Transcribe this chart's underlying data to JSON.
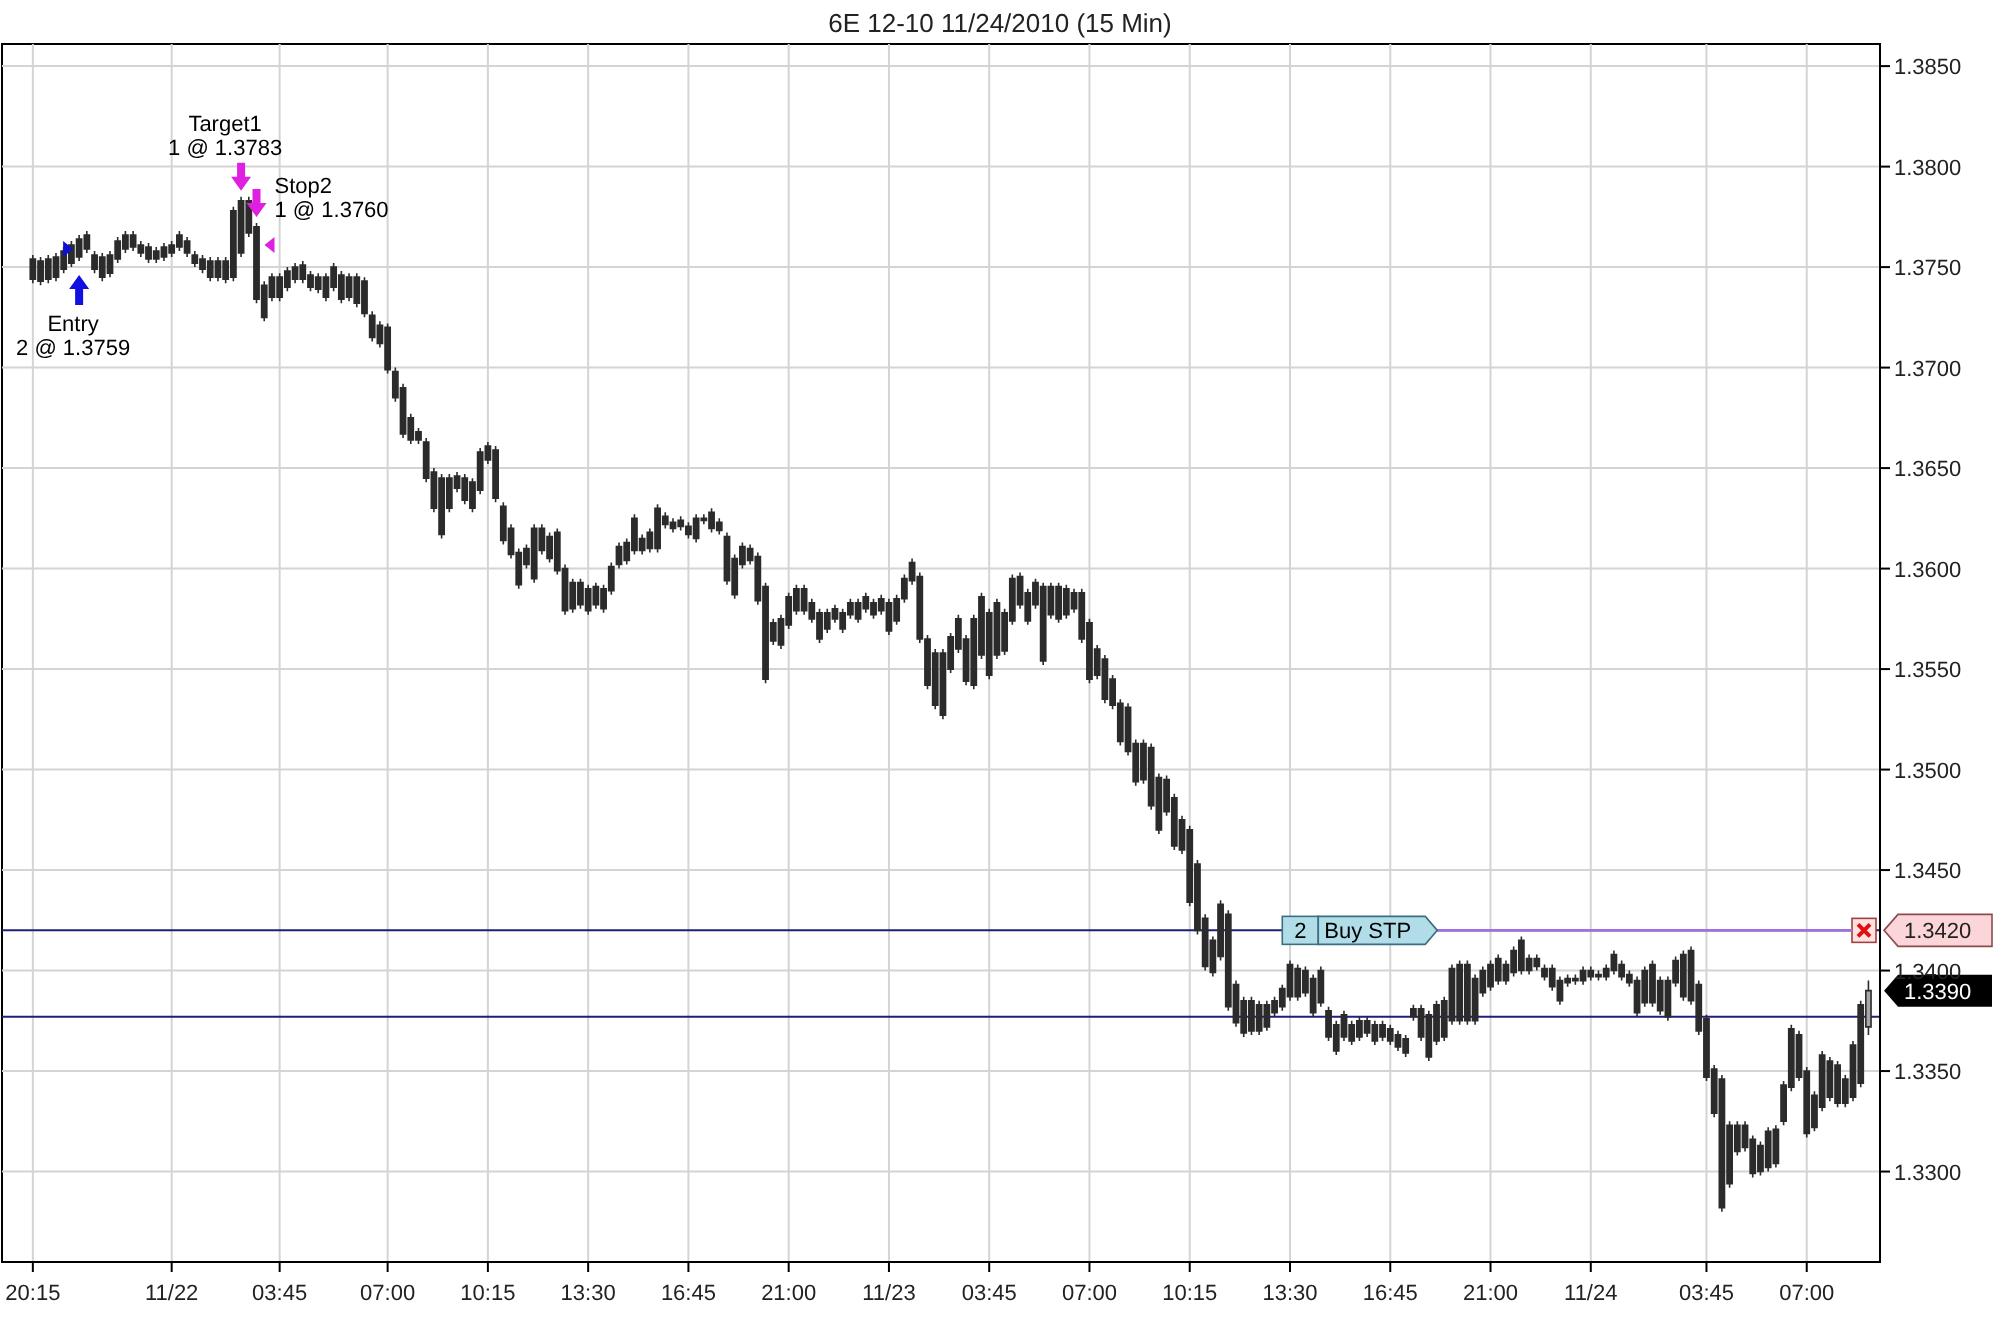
{
  "chart_data": {
    "type": "candlestick",
    "title": "6E 12-10  11/24/2010 (15 Min)",
    "color": "#2b2b2b",
    "grid": true,
    "categories": [
      "20:15",
      null,
      null,
      null,
      null,
      null,
      null,
      null,
      null,
      null,
      null,
      null,
      null,
      null,
      null,
      null,
      null,
      null,
      "11/22",
      null,
      null,
      null,
      null,
      null,
      null,
      null,
      null,
      null,
      null,
      null,
      null,
      null,
      "03:45",
      null,
      null,
      null,
      null,
      null,
      null,
      null,
      null,
      null,
      null,
      null,
      null,
      null,
      "07:00",
      null,
      null,
      null,
      null,
      null,
      null,
      null,
      null,
      null,
      null,
      null,
      null,
      "10:15",
      null,
      null,
      null,
      null,
      null,
      null,
      null,
      null,
      null,
      null,
      null,
      null,
      "13:30",
      null,
      null,
      null,
      null,
      null,
      null,
      null,
      null,
      null,
      null,
      null,
      null,
      "16:45",
      null,
      null,
      null,
      null,
      null,
      null,
      null,
      null,
      null,
      null,
      null,
      null,
      "21:00",
      null,
      null,
      null,
      null,
      null,
      null,
      null,
      null,
      null,
      null,
      null,
      null,
      "11/23",
      null,
      null,
      null,
      null,
      null,
      null,
      null,
      null,
      null,
      null,
      null,
      null,
      "03:45",
      null,
      null,
      null,
      null,
      null,
      null,
      null,
      null,
      null,
      null,
      null,
      null,
      "07:00",
      null,
      null,
      null,
      null,
      null,
      null,
      null,
      null,
      null,
      null,
      null,
      null,
      "10:15",
      null,
      null,
      null,
      null,
      null,
      null,
      null,
      null,
      null,
      null,
      null,
      null,
      "13:30",
      null,
      null,
      null,
      null,
      null,
      null,
      null,
      null,
      null,
      null,
      null,
      null,
      "16:45",
      null,
      null,
      null,
      null,
      null,
      null,
      null,
      null,
      null,
      null,
      null,
      null,
      "21:00",
      null,
      null,
      null,
      null,
      null,
      null,
      null,
      null,
      null,
      null,
      null,
      null,
      "11/24",
      null,
      null,
      null,
      null,
      null,
      null,
      null,
      null,
      null,
      null,
      null,
      null,
      null,
      null,
      "03:45",
      null,
      null,
      null,
      null,
      null,
      null,
      null,
      null,
      null,
      null,
      null,
      null,
      "07:00",
      null,
      null,
      null,
      null,
      null,
      null,
      null,
      null
    ],
    "ylim": [
      1.3255,
      1.3861
    ],
    "yticks": [
      {
        "value": 1.33,
        "label": "1.3300"
      },
      {
        "value": 1.335,
        "label": "1.3350"
      },
      {
        "value": 1.34,
        "label": "1.3400"
      },
      {
        "value": 1.345,
        "label": "1.3450"
      },
      {
        "value": 1.35,
        "label": "1.3500"
      },
      {
        "value": 1.355,
        "label": "1.3550"
      },
      {
        "value": 1.36,
        "label": "1.3600"
      },
      {
        "value": 1.365,
        "label": "1.3650"
      },
      {
        "value": 1.37,
        "label": "1.3700"
      },
      {
        "value": 1.375,
        "label": "1.3750"
      },
      {
        "value": 1.38,
        "label": "1.3800"
      },
      {
        "value": 1.385,
        "label": "1.3850"
      }
    ],
    "ref_lines": [
      {
        "axis": "y",
        "value": 1.342,
        "label": "1.3420",
        "color": "#1f1f7a"
      },
      {
        "axis": "y",
        "value": 1.3377,
        "color": "#1f1f7a"
      }
    ],
    "annotations": [
      {
        "text": "Entry\n2 @ 1.3759",
        "y": 1.3759
      },
      "Target1\n1 @ 1.3783",
      "Stop2\n1 @ 1.3760",
      {
        "text": "2 Buy STP",
        "y": 1.342
      },
      "1.3390"
    ],
    "ohlc": [
      [
        1.3754,
        1.3756,
        1.3742,
        1.3744
      ],
      [
        1.3753,
        1.3755,
        1.3741,
        1.3743
      ],
      [
        1.3754,
        1.3756,
        1.3742,
        1.3744
      ],
      [
        1.3755,
        1.3757,
        1.3743,
        1.3745
      ],
      [
        1.3758,
        1.376,
        1.3747,
        1.3749
      ],
      [
        1.3761,
        1.3763,
        1.375,
        1.3752
      ],
      [
        1.3764,
        1.3766,
        1.3753,
        1.3755
      ],
      [
        1.3766,
        1.3768,
        1.3757,
        1.3759
      ],
      [
        1.3756,
        1.3758,
        1.3747,
        1.3749
      ],
      [
        1.3755,
        1.3757,
        1.3743,
        1.3745
      ],
      [
        1.3756,
        1.3758,
        1.3745,
        1.3747
      ],
      [
        1.3763,
        1.3765,
        1.3752,
        1.3754
      ],
      [
        1.3766,
        1.3768,
        1.3757,
        1.3759
      ],
      [
        1.3766,
        1.3768,
        1.3758,
        1.376
      ],
      [
        1.3761,
        1.3763,
        1.3755,
        1.3757
      ],
      [
        1.376,
        1.3762,
        1.3752,
        1.3754
      ],
      [
        1.3758,
        1.376,
        1.3752,
        1.3754
      ],
      [
        1.376,
        1.3762,
        1.3753,
        1.3755
      ],
      [
        1.3761,
        1.3763,
        1.3755,
        1.3757
      ],
      [
        1.3766,
        1.3768,
        1.3758,
        1.376
      ],
      [
        1.3763,
        1.3765,
        1.3755,
        1.3757
      ],
      [
        1.3756,
        1.3758,
        1.375,
        1.3752
      ],
      [
        1.3754,
        1.3756,
        1.3747,
        1.3749
      ],
      [
        1.3753,
        1.3755,
        1.3743,
        1.3745
      ],
      [
        1.3753,
        1.3755,
        1.3743,
        1.3745
      ],
      [
        1.3753,
        1.3755,
        1.3742,
        1.3744
      ],
      [
        1.3778,
        1.378,
        1.3743,
        1.3745
      ],
      [
        1.3783,
        1.3785,
        1.3755,
        1.3757
      ],
      [
        1.3783,
        1.3785,
        1.3765,
        1.3767
      ],
      [
        1.377,
        1.3772,
        1.3732,
        1.3734
      ],
      [
        1.3741,
        1.3743,
        1.3723,
        1.3725
      ],
      [
        1.3745,
        1.3747,
        1.3733,
        1.3735
      ],
      [
        1.3745,
        1.3747,
        1.3733,
        1.3735
      ],
      [
        1.3748,
        1.375,
        1.3738,
        1.374
      ],
      [
        1.375,
        1.3752,
        1.3742,
        1.3744
      ],
      [
        1.3751,
        1.3753,
        1.3742,
        1.3744
      ],
      [
        1.3746,
        1.3748,
        1.3738,
        1.374
      ],
      [
        1.3745,
        1.3747,
        1.3737,
        1.3739
      ],
      [
        1.3745,
        1.3747,
        1.3733,
        1.3735
      ],
      [
        1.375,
        1.3752,
        1.3738,
        1.374
      ],
      [
        1.3746,
        1.3748,
        1.3732,
        1.3734
      ],
      [
        1.3745,
        1.3747,
        1.3733,
        1.3735
      ],
      [
        1.3745,
        1.3747,
        1.373,
        1.3732
      ],
      [
        1.3743,
        1.3745,
        1.3725,
        1.3727
      ],
      [
        1.3726,
        1.3728,
        1.3713,
        1.3715
      ],
      [
        1.3721,
        1.3723,
        1.371,
        1.3712
      ],
      [
        1.372,
        1.3722,
        1.3697,
        1.3699
      ],
      [
        1.3698,
        1.37,
        1.3683,
        1.3685
      ],
      [
        1.369,
        1.3692,
        1.3665,
        1.3667
      ],
      [
        1.3675,
        1.3677,
        1.3662,
        1.3664
      ],
      [
        1.3668,
        1.367,
        1.3662,
        1.3664
      ],
      [
        1.3663,
        1.3665,
        1.3643,
        1.3645
      ],
      [
        1.3648,
        1.365,
        1.3628,
        1.363
      ],
      [
        1.3645,
        1.3647,
        1.3615,
        1.3617
      ],
      [
        1.3645,
        1.3647,
        1.3628,
        1.363
      ],
      [
        1.3646,
        1.3648,
        1.3638,
        1.364
      ],
      [
        1.3645,
        1.3647,
        1.3632,
        1.3634
      ],
      [
        1.3643,
        1.3645,
        1.3628,
        1.363
      ],
      [
        1.3658,
        1.366,
        1.3637,
        1.3639
      ],
      [
        1.3661,
        1.3663,
        1.3652,
        1.3654
      ],
      [
        1.3659,
        1.3661,
        1.3633,
        1.3635
      ],
      [
        1.3631,
        1.3633,
        1.3612,
        1.3614
      ],
      [
        1.362,
        1.3622,
        1.3605,
        1.3607
      ],
      [
        1.3608,
        1.361,
        1.359,
        1.3592
      ],
      [
        1.361,
        1.3612,
        1.36,
        1.3602
      ],
      [
        1.362,
        1.3622,
        1.3593,
        1.3595
      ],
      [
        1.362,
        1.3622,
        1.3607,
        1.3609
      ],
      [
        1.3616,
        1.3618,
        1.3603,
        1.3605
      ],
      [
        1.3618,
        1.362,
        1.3597,
        1.3599
      ],
      [
        1.36,
        1.3602,
        1.3577,
        1.3579
      ],
      [
        1.3593,
        1.3595,
        1.3578,
        1.358
      ],
      [
        1.3593,
        1.3595,
        1.358,
        1.3582
      ],
      [
        1.359,
        1.3592,
        1.3577,
        1.3579
      ],
      [
        1.3591,
        1.3593,
        1.358,
        1.3582
      ],
      [
        1.359,
        1.3592,
        1.3578,
        1.358
      ],
      [
        1.3601,
        1.3603,
        1.3587,
        1.3589
      ],
      [
        1.3611,
        1.3613,
        1.36,
        1.3602
      ],
      [
        1.3613,
        1.3615,
        1.3602,
        1.3604
      ],
      [
        1.3625,
        1.3627,
        1.3607,
        1.3609
      ],
      [
        1.3615,
        1.3617,
        1.3607,
        1.3609
      ],
      [
        1.3618,
        1.362,
        1.3608,
        1.361
      ],
      [
        1.363,
        1.3632,
        1.3608,
        1.361
      ],
      [
        1.3626,
        1.3628,
        1.362,
        1.3622
      ],
      [
        1.3623,
        1.3625,
        1.3618,
        1.362
      ],
      [
        1.3624,
        1.3626,
        1.3619,
        1.3621
      ],
      [
        1.3621,
        1.3623,
        1.3615,
        1.3617
      ],
      [
        1.3625,
        1.3627,
        1.3613,
        1.3615
      ],
      [
        1.3625,
        1.3627,
        1.3622,
        1.3624
      ],
      [
        1.3628,
        1.363,
        1.3618,
        1.362
      ],
      [
        1.3623,
        1.3625,
        1.3617,
        1.3619
      ],
      [
        1.3616,
        1.3618,
        1.3592,
        1.3594
      ],
      [
        1.3605,
        1.3607,
        1.3585,
        1.3587
      ],
      [
        1.3611,
        1.3613,
        1.36,
        1.3602
      ],
      [
        1.361,
        1.3612,
        1.3602,
        1.3604
      ],
      [
        1.3606,
        1.3608,
        1.3582,
        1.3584
      ],
      [
        1.3591,
        1.3593,
        1.3543,
        1.3545
      ],
      [
        1.3573,
        1.3575,
        1.3562,
        1.3564
      ],
      [
        1.3575,
        1.3577,
        1.356,
        1.3562
      ],
      [
        1.3586,
        1.3588,
        1.357,
        1.3572
      ],
      [
        1.359,
        1.3592,
        1.3577,
        1.3579
      ],
      [
        1.359,
        1.3592,
        1.3577,
        1.3579
      ],
      [
        1.3583,
        1.3585,
        1.3573,
        1.3575
      ],
      [
        1.3578,
        1.358,
        1.3563,
        1.3565
      ],
      [
        1.3578,
        1.358,
        1.3568,
        1.357
      ],
      [
        1.358,
        1.3582,
        1.3573,
        1.3575
      ],
      [
        1.3578,
        1.358,
        1.3568,
        1.357
      ],
      [
        1.3583,
        1.3585,
        1.3575,
        1.3577
      ],
      [
        1.3583,
        1.3585,
        1.3573,
        1.3575
      ],
      [
        1.3586,
        1.3588,
        1.3578,
        1.358
      ],
      [
        1.3583,
        1.3585,
        1.3575,
        1.3577
      ],
      [
        1.3585,
        1.3587,
        1.3577,
        1.3579
      ],
      [
        1.3583,
        1.3585,
        1.3567,
        1.3569
      ],
      [
        1.3585,
        1.3587,
        1.3572,
        1.3574
      ],
      [
        1.3595,
        1.3597,
        1.3583,
        1.3585
      ],
      [
        1.3603,
        1.3605,
        1.3592,
        1.3594
      ],
      [
        1.3596,
        1.3598,
        1.3563,
        1.3565
      ],
      [
        1.3565,
        1.3567,
        1.354,
        1.3542
      ],
      [
        1.3558,
        1.356,
        1.353,
        1.3532
      ],
      [
        1.3558,
        1.356,
        1.3525,
        1.3527
      ],
      [
        1.3566,
        1.3568,
        1.3548,
        1.355
      ],
      [
        1.3575,
        1.3577,
        1.3558,
        1.356
      ],
      [
        1.3565,
        1.3567,
        1.3542,
        1.3544
      ],
      [
        1.3575,
        1.3577,
        1.354,
        1.3542
      ],
      [
        1.3586,
        1.3588,
        1.3555,
        1.3557
      ],
      [
        1.3578,
        1.358,
        1.3545,
        1.3547
      ],
      [
        1.3583,
        1.3585,
        1.3555,
        1.3557
      ],
      [
        1.3578,
        1.358,
        1.3557,
        1.3559
      ],
      [
        1.3595,
        1.3597,
        1.3572,
        1.3574
      ],
      [
        1.3596,
        1.3598,
        1.358,
        1.3582
      ],
      [
        1.3588,
        1.359,
        1.3572,
        1.3574
      ],
      [
        1.3593,
        1.3595,
        1.358,
        1.3582
      ],
      [
        1.3591,
        1.3593,
        1.3552,
        1.3554
      ],
      [
        1.3591,
        1.3593,
        1.3575,
        1.3577
      ],
      [
        1.3591,
        1.3593,
        1.3573,
        1.3575
      ],
      [
        1.359,
        1.3592,
        1.3575,
        1.3577
      ],
      [
        1.3588,
        1.359,
        1.3578,
        1.358
      ],
      [
        1.3588,
        1.359,
        1.3563,
        1.3565
      ],
      [
        1.3573,
        1.3575,
        1.3543,
        1.3545
      ],
      [
        1.356,
        1.3562,
        1.3545,
        1.3547
      ],
      [
        1.3555,
        1.3557,
        1.3533,
        1.3535
      ],
      [
        1.3545,
        1.3547,
        1.353,
        1.3532
      ],
      [
        1.3533,
        1.3535,
        1.3512,
        1.3514
      ],
      [
        1.3531,
        1.3533,
        1.3507,
        1.3509
      ],
      [
        1.3513,
        1.3515,
        1.3492,
        1.3494
      ],
      [
        1.3513,
        1.3515,
        1.3493,
        1.3495
      ],
      [
        1.3511,
        1.3513,
        1.348,
        1.3482
      ],
      [
        1.3496,
        1.3498,
        1.3468,
        1.347
      ],
      [
        1.3495,
        1.3497,
        1.3477,
        1.3479
      ],
      [
        1.3486,
        1.3488,
        1.346,
        1.3462
      ],
      [
        1.3475,
        1.3477,
        1.3458,
        1.346
      ],
      [
        1.347,
        1.3472,
        1.3432,
        1.3434
      ],
      [
        1.3453,
        1.3455,
        1.3418,
        1.342
      ],
      [
        1.3426,
        1.3428,
        1.34,
        1.3402
      ],
      [
        1.3415,
        1.3417,
        1.3397,
        1.3399
      ],
      [
        1.3433,
        1.3435,
        1.3405,
        1.3407
      ],
      [
        1.3428,
        1.343,
        1.338,
        1.3382
      ],
      [
        1.3393,
        1.3395,
        1.3372,
        1.3374
      ],
      [
        1.3385,
        1.3387,
        1.3367,
        1.3369
      ],
      [
        1.3385,
        1.3387,
        1.3368,
        1.337
      ],
      [
        1.3383,
        1.3385,
        1.3368,
        1.337
      ],
      [
        1.3383,
        1.3385,
        1.337,
        1.3372
      ],
      [
        1.3385,
        1.3387,
        1.3377,
        1.3379
      ],
      [
        1.3391,
        1.3393,
        1.338,
        1.3382
      ],
      [
        1.3403,
        1.3405,
        1.3385,
        1.3387
      ],
      [
        1.3401,
        1.3403,
        1.3385,
        1.3387
      ],
      [
        1.34,
        1.3402,
        1.3387,
        1.3389
      ],
      [
        1.3396,
        1.3398,
        1.3377,
        1.3379
      ],
      [
        1.34,
        1.3402,
        1.3382,
        1.3384
      ],
      [
        1.338,
        1.3382,
        1.3365,
        1.3367
      ],
      [
        1.3373,
        1.3375,
        1.3358,
        1.336
      ],
      [
        1.3378,
        1.338,
        1.3365,
        1.3367
      ],
      [
        1.3373,
        1.3375,
        1.3363,
        1.3365
      ],
      [
        1.3375,
        1.3377,
        1.3365,
        1.3367
      ],
      [
        1.3375,
        1.3377,
        1.3367,
        1.3369
      ],
      [
        1.3373,
        1.3375,
        1.3363,
        1.3365
      ],
      [
        1.3373,
        1.3375,
        1.3365,
        1.3367
      ],
      [
        1.3371,
        1.3373,
        1.3363,
        1.3365
      ],
      [
        1.3368,
        1.337,
        1.336,
        1.3362
      ],
      [
        1.3366,
        1.3368,
        1.3357,
        1.3359
      ],
      [
        1.3381,
        1.3383,
        1.3375,
        1.3377
      ],
      [
        1.3381,
        1.3383,
        1.3365,
        1.3367
      ],
      [
        1.3378,
        1.338,
        1.3355,
        1.3357
      ],
      [
        1.3383,
        1.3385,
        1.3363,
        1.3365
      ],
      [
        1.3385,
        1.3387,
        1.3365,
        1.3367
      ],
      [
        1.3401,
        1.3403,
        1.3373,
        1.3375
      ],
      [
        1.3403,
        1.3405,
        1.3373,
        1.3375
      ],
      [
        1.3403,
        1.3405,
        1.3373,
        1.3375
      ],
      [
        1.3396,
        1.3398,
        1.3373,
        1.3375
      ],
      [
        1.34,
        1.3402,
        1.3387,
        1.3389
      ],
      [
        1.3403,
        1.3405,
        1.339,
        1.3392
      ],
      [
        1.3406,
        1.3408,
        1.3393,
        1.3395
      ],
      [
        1.3403,
        1.3405,
        1.3393,
        1.3395
      ],
      [
        1.341,
        1.3412,
        1.3397,
        1.3399
      ],
      [
        1.3415,
        1.3417,
        1.3398,
        1.34
      ],
      [
        1.3406,
        1.3408,
        1.3398,
        1.34
      ],
      [
        1.3406,
        1.3408,
        1.34,
        1.3402
      ],
      [
        1.3401,
        1.3403,
        1.3395,
        1.3397
      ],
      [
        1.3401,
        1.3403,
        1.339,
        1.3392
      ],
      [
        1.3395,
        1.3397,
        1.3383,
        1.3385
      ],
      [
        1.3396,
        1.3398,
        1.3392,
        1.3394
      ],
      [
        1.3396,
        1.3398,
        1.3393,
        1.3395
      ],
      [
        1.34,
        1.3402,
        1.3393,
        1.3395
      ],
      [
        1.34,
        1.3402,
        1.3395,
        1.3397
      ],
      [
        1.3398,
        1.34,
        1.3395,
        1.3397
      ],
      [
        1.3401,
        1.3403,
        1.3395,
        1.3397
      ],
      [
        1.3408,
        1.341,
        1.3398,
        1.34
      ],
      [
        1.3403,
        1.3405,
        1.3395,
        1.3397
      ],
      [
        1.3398,
        1.34,
        1.3392,
        1.3394
      ],
      [
        1.3395,
        1.3397,
        1.3377,
        1.3379
      ],
      [
        1.34,
        1.3402,
        1.3382,
        1.3384
      ],
      [
        1.3403,
        1.3405,
        1.3382,
        1.3384
      ],
      [
        1.3395,
        1.3397,
        1.3378,
        1.338
      ],
      [
        1.3395,
        1.3397,
        1.3375,
        1.3377
      ],
      [
        1.3405,
        1.3407,
        1.3392,
        1.3394
      ],
      [
        1.3408,
        1.341,
        1.3385,
        1.3387
      ],
      [
        1.341,
        1.3412,
        1.3383,
        1.3385
      ],
      [
        1.3393,
        1.3395,
        1.3368,
        1.337
      ],
      [
        1.3376,
        1.3378,
        1.3345,
        1.3347
      ],
      [
        1.3351,
        1.3353,
        1.3327,
        1.3329
      ],
      [
        1.3346,
        1.3348,
        1.328,
        1.3282
      ],
      [
        1.3323,
        1.3325,
        1.3292,
        1.3294
      ],
      [
        1.3323,
        1.3325,
        1.3308,
        1.331
      ],
      [
        1.3323,
        1.3325,
        1.331,
        1.3312
      ],
      [
        1.3316,
        1.3318,
        1.3297,
        1.3299
      ],
      [
        1.3313,
        1.3315,
        1.3298,
        1.33
      ],
      [
        1.332,
        1.3322,
        1.33,
        1.3302
      ],
      [
        1.3321,
        1.3323,
        1.3302,
        1.3304
      ],
      [
        1.3343,
        1.3345,
        1.3323,
        1.3325
      ],
      [
        1.3371,
        1.3373,
        1.334,
        1.3342
      ],
      [
        1.3368,
        1.337,
        1.3345,
        1.3347
      ],
      [
        1.335,
        1.3352,
        1.3317,
        1.3319
      ],
      [
        1.3338,
        1.334,
        1.332,
        1.3322
      ],
      [
        1.3358,
        1.336,
        1.333,
        1.3332
      ],
      [
        1.3355,
        1.3357,
        1.3335,
        1.3337
      ],
      [
        1.3353,
        1.3355,
        1.3332,
        1.3334
      ],
      [
        1.3346,
        1.3348,
        1.3332,
        1.3334
      ],
      [
        1.3363,
        1.3365,
        1.3335,
        1.3337
      ],
      [
        1.3383,
        1.3385,
        1.3342,
        1.3344
      ],
      [
        1.3372,
        1.3395,
        1.3368,
        1.339
      ]
    ]
  }
}
